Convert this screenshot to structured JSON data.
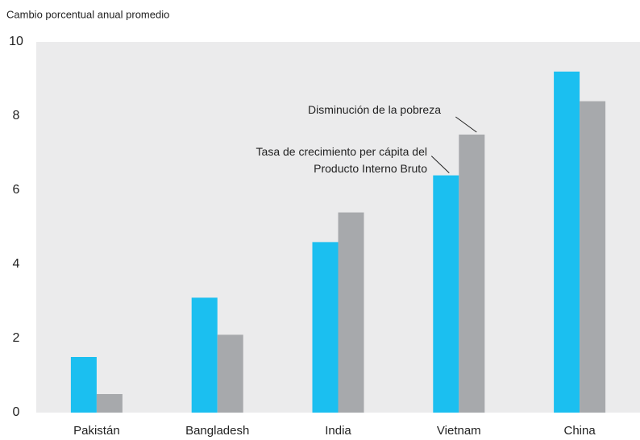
{
  "chart_data": {
    "type": "bar",
    "y_label": "Cambio porcentual anual promedio",
    "categories": [
      "Pakistán",
      "Bangladesh",
      "India",
      "Vietnam",
      "China"
    ],
    "series": [
      {
        "name": "Tasa de crecimiento per cápita del Producto Interno Bruto",
        "color": "#1bbff0",
        "values": [
          1.5,
          3.1,
          4.6,
          6.4,
          9.2
        ]
      },
      {
        "name": "Disminución de la pobreza",
        "color": "#a7a9ac",
        "values": [
          0.5,
          2.1,
          5.4,
          7.5,
          8.4
        ]
      }
    ],
    "ylim": [
      0,
      10
    ],
    "yticks": [
      0,
      2,
      4,
      6,
      8,
      10
    ],
    "grid": false,
    "background": "#ebebec"
  }
}
